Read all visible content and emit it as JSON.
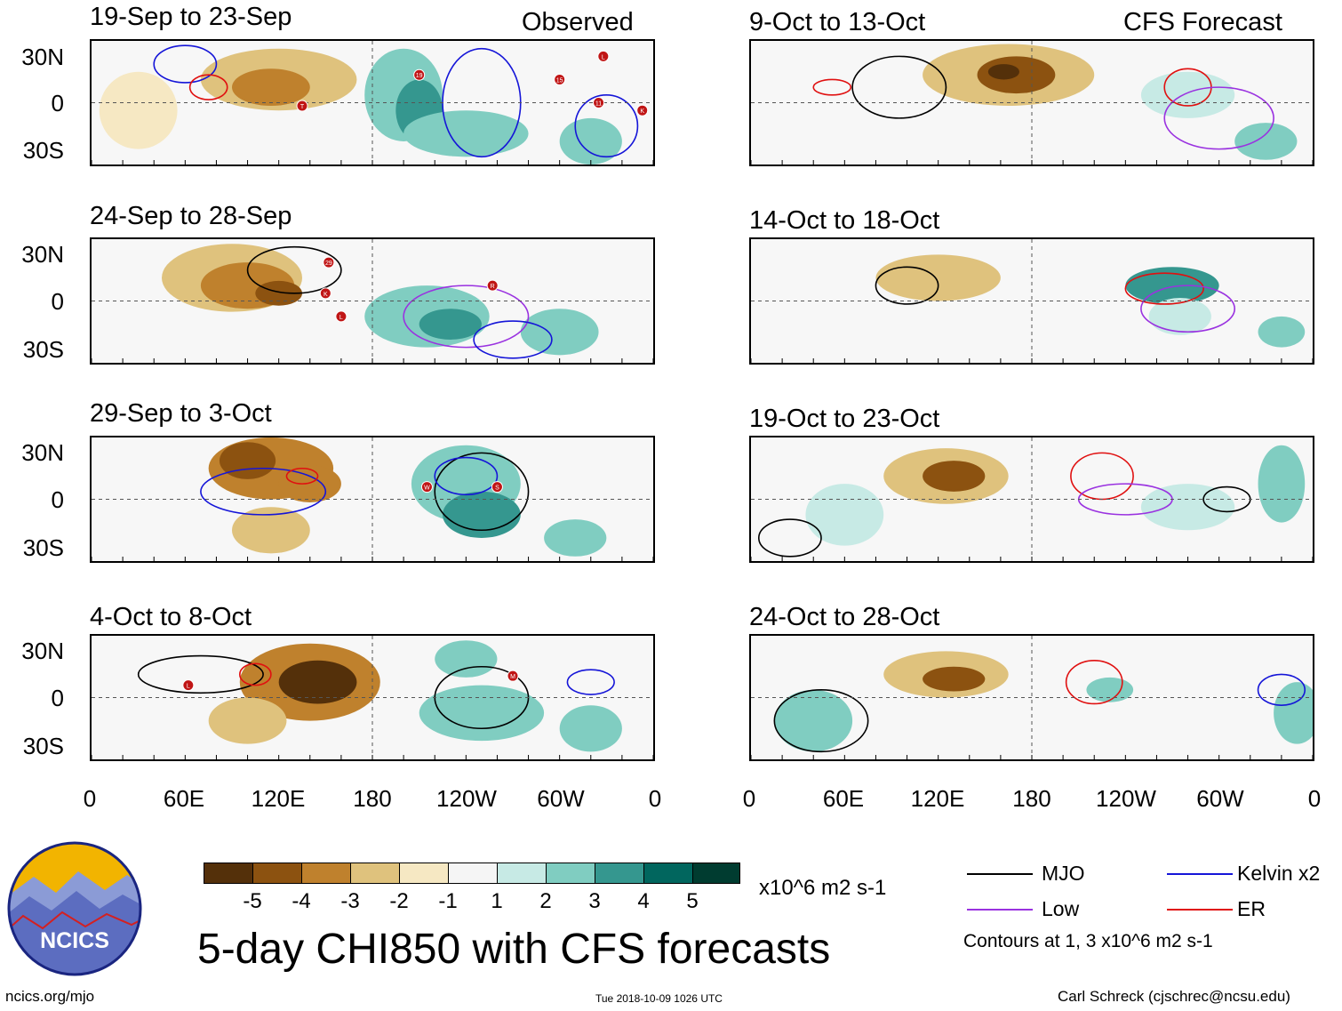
{
  "columns": {
    "left_label": "Observed",
    "right_label": "CFS Forecast"
  },
  "panels_left": [
    {
      "title": "19-Sep to 23-Sep"
    },
    {
      "title": "24-Sep to 28-Sep"
    },
    {
      "title": "29-Sep to 3-Oct"
    },
    {
      "title": "4-Oct to 8-Oct"
    }
  ],
  "panels_right": [
    {
      "title": "9-Oct to 13-Oct"
    },
    {
      "title": "14-Oct to 18-Oct"
    },
    {
      "title": "19-Oct to 23-Oct"
    },
    {
      "title": "24-Oct to 28-Oct"
    }
  ],
  "axes": {
    "lat_ticks": [
      "30N",
      "0",
      "30S"
    ],
    "lon_ticks": [
      "0",
      "60E",
      "120E",
      "180",
      "120W",
      "60W",
      "0"
    ]
  },
  "chart_data": {
    "type": "heatmap",
    "title": "5-day CHI850 with CFS forecasts",
    "variable": "CHI850",
    "units": "x10^6 m2 s-1",
    "colorbar": {
      "ticks": [
        "-5",
        "-4",
        "-3",
        "-2",
        "-1",
        "1",
        "2",
        "3",
        "4",
        "5"
      ],
      "colors": [
        "#54300a",
        "#8c5210",
        "#bf812d",
        "#dfc27d",
        "#f6e8c3",
        "#f5f5f5",
        "#c7eae5",
        "#80cdc1",
        "#35978f",
        "#01665e",
        "#003c30"
      ]
    },
    "xlim": [
      0,
      360
    ],
    "ylim": [
      -40,
      40
    ],
    "contour_legend": [
      {
        "name": "MJO",
        "color": "#000000"
      },
      {
        "name": "Kelvin x2",
        "color": "#1515d8"
      },
      {
        "name": "Low",
        "color": "#9a32e0"
      },
      {
        "name": "ER",
        "color": "#e01010"
      }
    ],
    "contour_note": "Contours at 1, 3 x10^6 m2 s-1",
    "storm_markers": {
      "panel1": [
        "19",
        "T",
        "15",
        "L",
        "11",
        "K"
      ],
      "panel2": [
        "29",
        "K",
        "L",
        "R"
      ],
      "panel3": [
        "W",
        "S"
      ],
      "panel4": [
        "L",
        "M"
      ]
    }
  },
  "footer": {
    "logo_text": "NCICS",
    "url": "ncics.org/mjo",
    "timestamp": "Tue 2018-10-09 1026 UTC",
    "author": "Carl Schreck (cjschrec@ncsu.edu)"
  }
}
